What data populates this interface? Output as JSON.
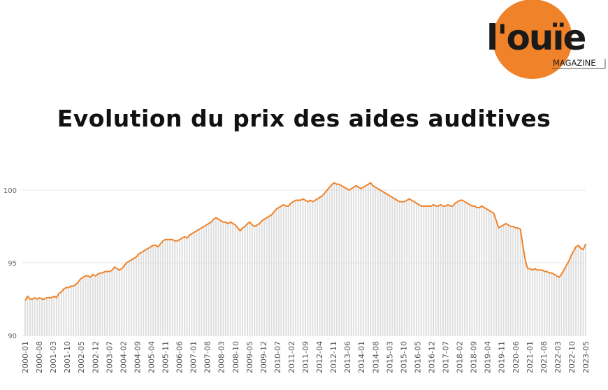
{
  "logo": {
    "brand": "l'ouïe",
    "sub": "MAGAZINE",
    "accent": "#F08329",
    "text_color": "#1a1a1a"
  },
  "title": "Evolution du prix des aides auditives",
  "chart_data": {
    "type": "line",
    "title": "Evolution du prix des aides auditives",
    "xlabel": "",
    "ylabel": "",
    "ylim": [
      90,
      100.7
    ],
    "yticks": [
      90,
      95,
      100
    ],
    "grid": true,
    "line_color": "#F08329",
    "bar_color": "#d9d9d9",
    "xtick_labels": [
      "2000-01",
      "2000-08",
      "2001-03",
      "2001-10",
      "2002-05",
      "2002-12",
      "2003-07",
      "2004-02",
      "2004-09",
      "2005-04",
      "2005-11",
      "2006-06",
      "2007-01",
      "2007-08",
      "2008-03",
      "2008-10",
      "2009-05",
      "2009-12",
      "2010-07",
      "2011-02",
      "2011-09",
      "2012-04",
      "2012-11",
      "2013-06",
      "2014-01",
      "2014-08",
      "2015-03",
      "2015-10",
      "2016-05",
      "2016-12",
      "2017-07",
      "2018-02",
      "2018-09",
      "2019-04",
      "2019-11",
      "2020-06",
      "2021-01",
      "2021-08",
      "2022-03",
      "2022-10",
      "2023-05"
    ],
    "series": [
      {
        "values": [
          92.4,
          92.7,
          92.5,
          92.5,
          92.6,
          92.5,
          92.6,
          92.5,
          92.5,
          92.6,
          92.6,
          92.6,
          92.7,
          92.6,
          92.9,
          93.0,
          93.2,
          93.3,
          93.3,
          93.4,
          93.4,
          93.5,
          93.7,
          93.9,
          94.0,
          94.1,
          94.1,
          94.0,
          94.2,
          94.1,
          94.2,
          94.3,
          94.3,
          94.4,
          94.4,
          94.4,
          94.5,
          94.7,
          94.6,
          94.5,
          94.6,
          94.8,
          95.0,
          95.1,
          95.2,
          95.3,
          95.4,
          95.6,
          95.7,
          95.8,
          95.9,
          96.0,
          96.1,
          96.2,
          96.2,
          96.1,
          96.3,
          96.5,
          96.6,
          96.6,
          96.6,
          96.6,
          96.5,
          96.5,
          96.6,
          96.7,
          96.8,
          96.7,
          96.9,
          97.0,
          97.1,
          97.2,
          97.3,
          97.4,
          97.5,
          97.6,
          97.7,
          97.8,
          98.0,
          98.1,
          98.0,
          97.9,
          97.8,
          97.8,
          97.7,
          97.8,
          97.7,
          97.6,
          97.4,
          97.2,
          97.4,
          97.5,
          97.7,
          97.8,
          97.6,
          97.5,
          97.6,
          97.7,
          97.9,
          98.0,
          98.1,
          98.2,
          98.3,
          98.5,
          98.7,
          98.8,
          98.9,
          99.0,
          98.9,
          98.9,
          99.1,
          99.2,
          99.3,
          99.3,
          99.3,
          99.4,
          99.3,
          99.2,
          99.3,
          99.2,
          99.3,
          99.4,
          99.5,
          99.6,
          99.8,
          100.0,
          100.2,
          100.4,
          100.5,
          100.4,
          100.4,
          100.3,
          100.2,
          100.1,
          100.0,
          100.1,
          100.2,
          100.3,
          100.2,
          100.1,
          100.2,
          100.3,
          100.4,
          100.5,
          100.3,
          100.2,
          100.1,
          100.0,
          99.9,
          99.8,
          99.7,
          99.6,
          99.5,
          99.4,
          99.3,
          99.2,
          99.2,
          99.2,
          99.3,
          99.4,
          99.3,
          99.2,
          99.1,
          99.0,
          98.9,
          98.9,
          98.9,
          98.9,
          98.9,
          99.0,
          98.9,
          98.9,
          99.0,
          98.9,
          98.9,
          99.0,
          98.9,
          98.9,
          99.1,
          99.2,
          99.3,
          99.3,
          99.2,
          99.1,
          99.0,
          98.9,
          98.9,
          98.8,
          98.8,
          98.9,
          98.8,
          98.7,
          98.6,
          98.5,
          98.4,
          97.9,
          97.4,
          97.5,
          97.6,
          97.7,
          97.6,
          97.5,
          97.5,
          97.4,
          97.4,
          97.3,
          96.2,
          95.2,
          94.6,
          94.6,
          94.5,
          94.6,
          94.5,
          94.5,
          94.5,
          94.4,
          94.4,
          94.3,
          94.3,
          94.2,
          94.1,
          94.0,
          94.2,
          94.5,
          94.8,
          95.1,
          95.5,
          95.8,
          96.1,
          96.2,
          96.0,
          95.9,
          96.3
        ]
      }
    ]
  }
}
